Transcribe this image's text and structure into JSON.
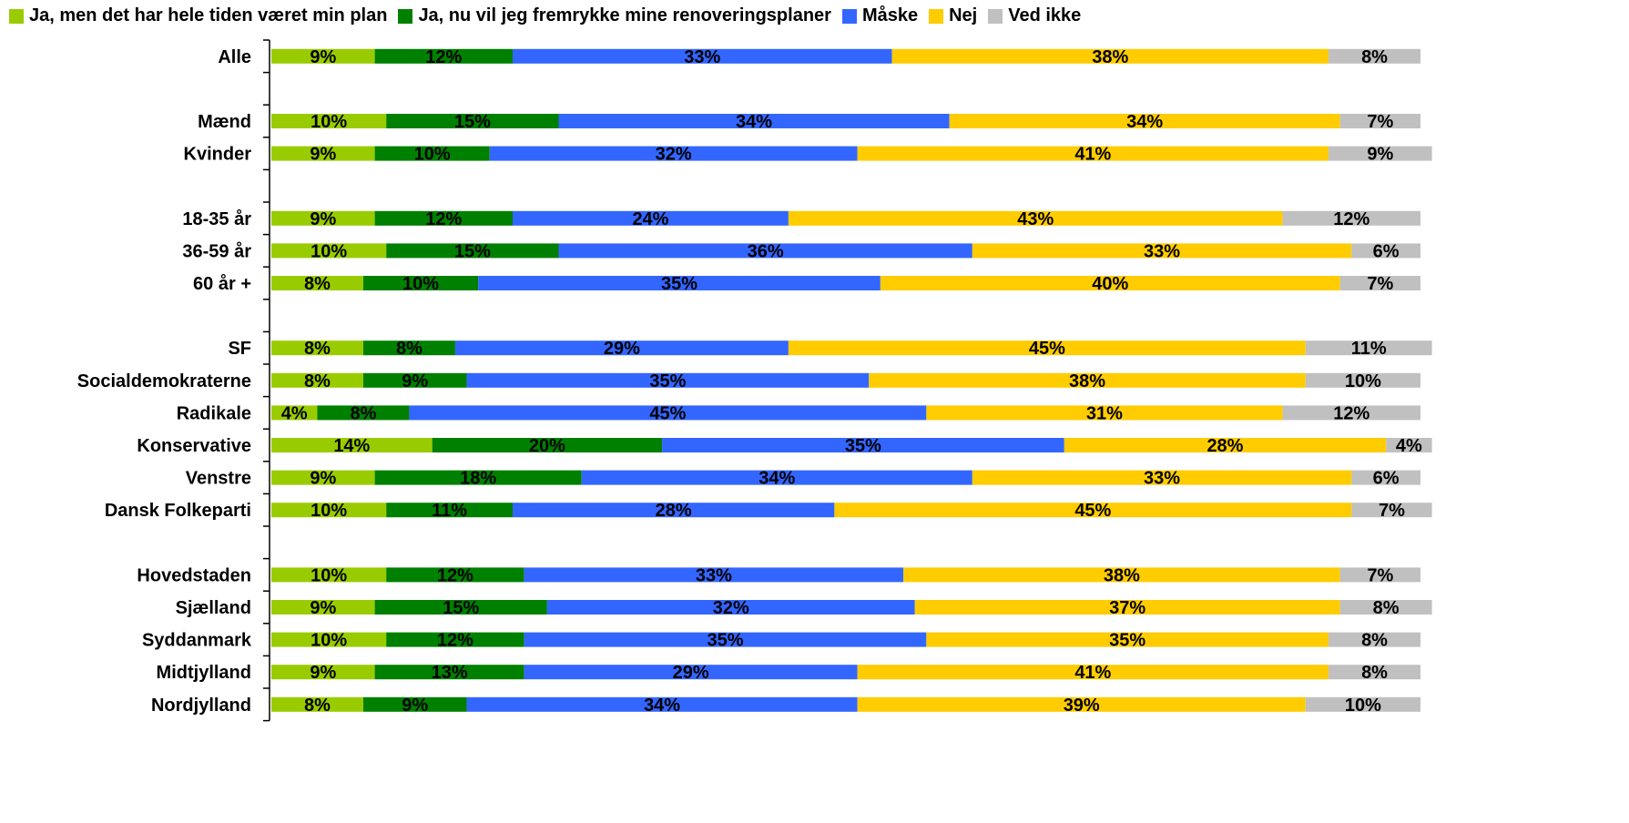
{
  "legend_items": [
    {
      "label": "Ja, men det har hele tiden været min plan",
      "color": "#99cc00"
    },
    {
      "label": "Ja, nu vil jeg fremrykke mine renoveringsplaner",
      "color": "#008000"
    },
    {
      "label": "Måske",
      "color": "#3366ff"
    },
    {
      "label": "Nej",
      "color": "#ffcc00"
    },
    {
      "label": "Ved ikke",
      "color": "#c0c0c0"
    }
  ],
  "chart_data": {
    "type": "bar",
    "orientation": "horizontal",
    "stacked": "percent",
    "legend_position": "top",
    "value_suffix": "%",
    "xlim": [
      0,
      100
    ],
    "categories": [
      "Alle",
      "",
      "Mænd",
      "Kvinder",
      "",
      "18-35 år",
      "36-59 år",
      "60 år +",
      "",
      "SF",
      "Socialdemokraterne",
      "Radikale",
      "Konservative",
      "Venstre",
      "Dansk Folkeparti",
      "",
      "Hovedstaden",
      "Sjælland",
      "Syddanmark",
      "Midtjylland",
      "Nordjylland"
    ],
    "series": [
      {
        "name": "Ja, men det har hele tiden været min plan",
        "color": "#99cc00",
        "values": [
          9,
          null,
          10,
          9,
          null,
          9,
          10,
          8,
          null,
          8,
          8,
          4,
          14,
          9,
          10,
          null,
          10,
          9,
          10,
          9,
          8
        ]
      },
      {
        "name": "Ja, nu vil jeg fremrykke mine renoveringsplaner",
        "color": "#008000",
        "values": [
          12,
          null,
          15,
          10,
          null,
          12,
          15,
          10,
          null,
          8,
          9,
          8,
          20,
          18,
          11,
          null,
          12,
          15,
          12,
          13,
          9
        ]
      },
      {
        "name": "Måske",
        "color": "#3366ff",
        "values": [
          33,
          null,
          34,
          32,
          null,
          24,
          36,
          35,
          null,
          29,
          35,
          45,
          35,
          34,
          28,
          null,
          33,
          32,
          35,
          29,
          34
        ]
      },
      {
        "name": "Nej",
        "color": "#ffcc00",
        "values": [
          38,
          null,
          34,
          41,
          null,
          43,
          33,
          40,
          null,
          45,
          38,
          31,
          28,
          33,
          45,
          null,
          38,
          37,
          35,
          41,
          39
        ]
      },
      {
        "name": "Ved ikke",
        "color": "#c0c0c0",
        "values": [
          8,
          null,
          7,
          9,
          null,
          12,
          6,
          7,
          null,
          11,
          10,
          12,
          4,
          6,
          7,
          null,
          7,
          8,
          8,
          8,
          10
        ]
      }
    ]
  }
}
